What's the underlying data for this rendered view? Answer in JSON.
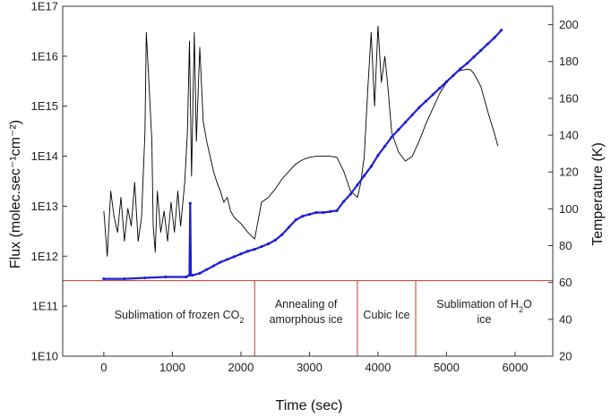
{
  "chart_data": {
    "type": "line",
    "xlabel": "Time (sec)",
    "ylabel_left": "Flux (molec.sec⁻¹cm⁻²)",
    "ylabel_right": "Temperature (K)",
    "xlim": [
      -600,
      6550
    ],
    "ylim_left": [
      10000000000.0,
      1e+17
    ],
    "left_scale": "log",
    "ylim_right": [
      20,
      210
    ],
    "x_ticks": [
      0,
      1000,
      2000,
      3000,
      4000,
      5000,
      6000
    ],
    "y_left_ticks": [
      "1E10",
      "1E11",
      "1E12",
      "1E13",
      "1E14",
      "1E15",
      "1E16",
      "1E17"
    ],
    "y_right_ticks": [
      20,
      40,
      60,
      80,
      100,
      120,
      140,
      160,
      180,
      200
    ],
    "grid": false,
    "colors": {
      "flux": "#000000",
      "temperature": "#1f1fd6",
      "phase_lines": "#c0392b"
    },
    "series": [
      {
        "axis": "left",
        "values": [
          [
            0,
            8000000000000.0
          ],
          [
            50,
            1000000000000.0
          ],
          [
            100,
            20000000000000.0
          ],
          [
            150,
            6000000000000.0
          ],
          [
            200,
            3000000000000.0
          ],
          [
            250,
            15000000000000.0
          ],
          [
            300,
            2000000000000.0
          ],
          [
            350,
            9000000000000.0
          ],
          [
            400,
            4000000000000.0
          ],
          [
            450,
            30000000000000.0
          ],
          [
            500,
            2000000000000.0
          ],
          [
            550,
            6000000000000.0
          ],
          [
            600,
            300000000000000.0
          ],
          [
            620,
            3e+16
          ],
          [
            650,
            5000000000000000.0
          ],
          [
            700,
            200000000000000.0
          ],
          [
            720,
            4000000000000.0
          ],
          [
            750,
            1200000000000.0
          ],
          [
            780,
            20000000000000.0
          ],
          [
            830,
            3000000000000.0
          ],
          [
            880,
            8000000000000.0
          ],
          [
            930,
            2000000000000.0
          ],
          [
            980,
            12000000000000.0
          ],
          [
            1030,
            3000000000000.0
          ],
          [
            1080,
            20000000000000.0
          ],
          [
            1120,
            4000000000000.0
          ],
          [
            1180,
            30000000000000.0
          ],
          [
            1220,
            300000000000000.0
          ],
          [
            1250,
            2e+16
          ],
          [
            1280,
            40000000000000.0
          ],
          [
            1320,
            3e+16
          ],
          [
            1350,
            200000000000000.0
          ],
          [
            1400,
            1.5e+16
          ],
          [
            1450,
            500000000000000.0
          ],
          [
            1500,
            200000000000000.0
          ],
          [
            1550,
            100000000000000.0
          ],
          [
            1600,
            50000000000000.0
          ],
          [
            1650,
            30000000000000.0
          ],
          [
            1700,
            20000000000000.0
          ],
          [
            1750,
            12000000000000.0
          ],
          [
            1800,
            15000000000000.0
          ],
          [
            1850,
            8000000000000.0
          ],
          [
            1900,
            6000000000000.0
          ],
          [
            2000,
            4500000000000.0
          ],
          [
            2100,
            3000000000000.0
          ],
          [
            2200,
            2200000000000.0
          ],
          [
            2250,
            5000000000000.0
          ],
          [
            2300,
            12000000000000.0
          ],
          [
            2400,
            15000000000000.0
          ],
          [
            2500,
            22000000000000.0
          ],
          [
            2600,
            35000000000000.0
          ],
          [
            2700,
            50000000000000.0
          ],
          [
            2800,
            70000000000000.0
          ],
          [
            2900,
            85000000000000.0
          ],
          [
            3000,
            95000000000000.0
          ],
          [
            3100,
            100000000000000.0
          ],
          [
            3200,
            100000000000000.0
          ],
          [
            3300,
            100000000000000.0
          ],
          [
            3400,
            95000000000000.0
          ],
          [
            3500,
            50000000000000.0
          ],
          [
            3600,
            20000000000000.0
          ],
          [
            3700,
            15000000000000.0
          ],
          [
            3750,
            30000000000000.0
          ],
          [
            3800,
            100000000000000.0
          ],
          [
            3850,
            2000000000000000.0
          ],
          [
            3900,
            3e+16
          ],
          [
            3950,
            1000000000000000.0
          ],
          [
            4000,
            4e+16
          ],
          [
            4050,
            3000000000000000.0
          ],
          [
            4100,
            1e+16
          ],
          [
            4150,
            2000000000000000.0
          ],
          [
            4200,
            300000000000000.0
          ],
          [
            4300,
            120000000000000.0
          ],
          [
            4400,
            80000000000000.0
          ],
          [
            4500,
            100000000000000.0
          ],
          [
            4600,
            200000000000000.0
          ],
          [
            4700,
            450000000000000.0
          ],
          [
            4800,
            900000000000000.0
          ],
          [
            4900,
            1800000000000000.0
          ],
          [
            5000,
            3000000000000000.0
          ],
          [
            5100,
            4300000000000000.0
          ],
          [
            5200,
            5200000000000000.0
          ],
          [
            5300,
            5500000000000000.0
          ],
          [
            5350,
            5400000000000000.0
          ],
          [
            5400,
            4500000000000000.0
          ],
          [
            5500,
            2500000000000000.0
          ],
          [
            5600,
            800000000000000.0
          ],
          [
            5700,
            280000000000000.0
          ],
          [
            5750,
            160000000000000.0
          ]
        ]
      },
      {
        "axis": "right",
        "values": [
          [
            0,
            62
          ],
          [
            300,
            62
          ],
          [
            600,
            62.5
          ],
          [
            900,
            63
          ],
          [
            1200,
            63
          ],
          [
            1250,
            64
          ],
          [
            1260,
            103
          ],
          [
            1270,
            64
          ],
          [
            1300,
            64
          ],
          [
            1400,
            65
          ],
          [
            1500,
            67
          ],
          [
            1600,
            69
          ],
          [
            1700,
            71
          ],
          [
            1800,
            72.5
          ],
          [
            1900,
            74
          ],
          [
            2000,
            75.5
          ],
          [
            2100,
            77
          ],
          [
            2200,
            78
          ],
          [
            2300,
            79.5
          ],
          [
            2400,
            81
          ],
          [
            2500,
            83
          ],
          [
            2600,
            86
          ],
          [
            2700,
            90
          ],
          [
            2800,
            94
          ],
          [
            2900,
            96
          ],
          [
            3000,
            97
          ],
          [
            3100,
            98
          ],
          [
            3200,
            98
          ],
          [
            3300,
            98.5
          ],
          [
            3400,
            99
          ],
          [
            3500,
            104
          ],
          [
            3600,
            108
          ],
          [
            3700,
            113
          ],
          [
            3800,
            118
          ],
          [
            3900,
            123
          ],
          [
            4000,
            129
          ],
          [
            4100,
            134
          ],
          [
            4200,
            139
          ],
          [
            4300,
            143
          ],
          [
            4400,
            147
          ],
          [
            4500,
            151
          ],
          [
            4600,
            155
          ],
          [
            4700,
            158.5
          ],
          [
            4800,
            162
          ],
          [
            4900,
            165.5
          ],
          [
            5000,
            169
          ],
          [
            5100,
            172.5
          ],
          [
            5200,
            176
          ],
          [
            5300,
            179
          ],
          [
            5400,
            182.5
          ],
          [
            5500,
            186
          ],
          [
            5600,
            189.5
          ],
          [
            5700,
            193
          ],
          [
            5800,
            197
          ]
        ]
      }
    ],
    "phase_boundary_temperature": 61,
    "phase_dividers_x": [
      2200,
      3700,
      4550
    ],
    "phases": [
      {
        "label": "Sublimation of frozen CO",
        "sub": "2",
        "suffix": "",
        "x_start": 0,
        "x_end": 2200
      },
      {
        "label": "Annealing of",
        "label_line2": "amorphous ice",
        "x_start": 2200,
        "x_end": 3700
      },
      {
        "label": "Cubic Ice",
        "x_start": 3700,
        "x_end": 4550
      },
      {
        "label": "Sublimation of H",
        "sub": "2",
        "suffix": "O",
        "label_line2": "ice",
        "x_start": 4550,
        "x_end": 6550
      }
    ]
  }
}
